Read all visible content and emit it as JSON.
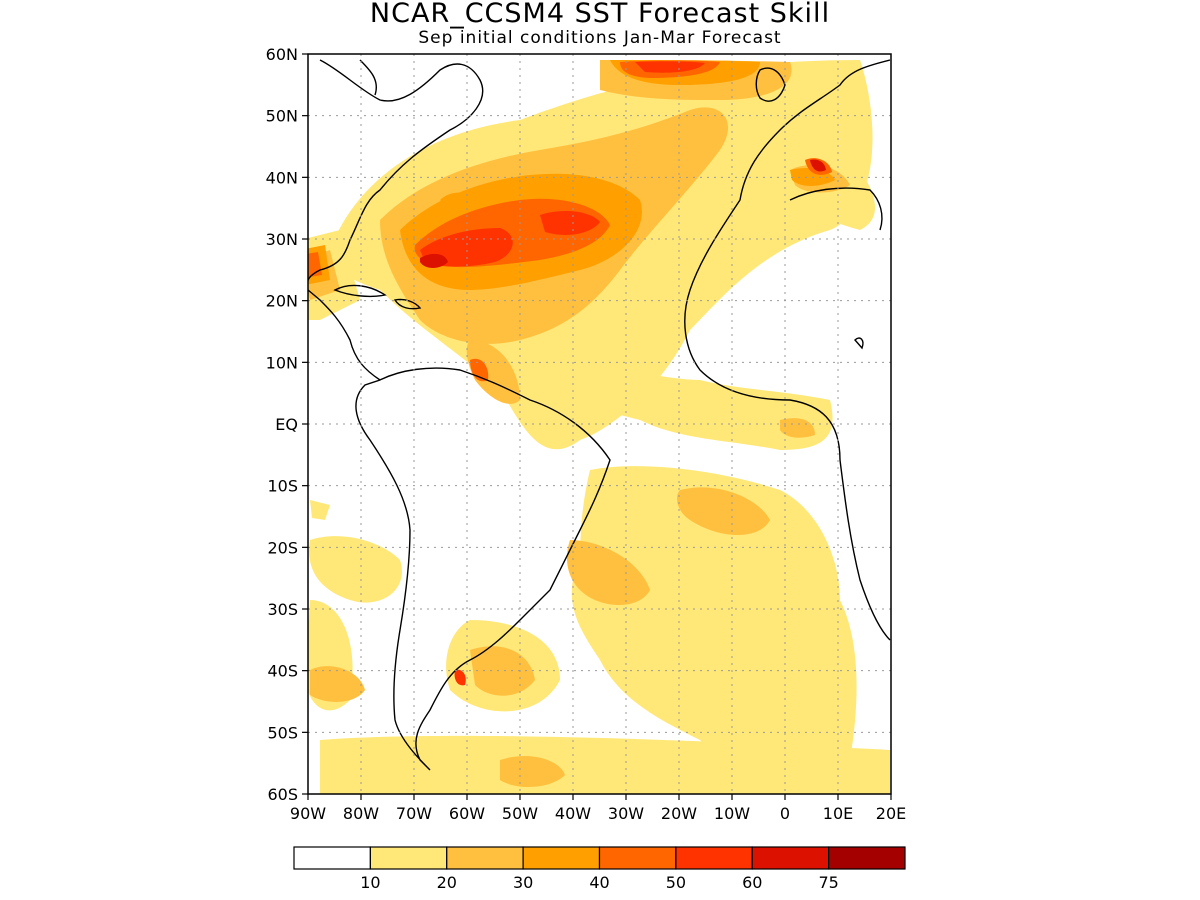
{
  "title": "NCAR_CCSM4 SST Forecast Skill",
  "subtitle": "Sep initial conditions  Jan-Mar Forecast",
  "map": {
    "lat_labels": [
      "60N",
      "50N",
      "40N",
      "30N",
      "20N",
      "10N",
      "EQ",
      "10S",
      "20S",
      "30S",
      "40S",
      "50S",
      "60S"
    ],
    "lon_labels": [
      "90W",
      "80W",
      "70W",
      "60W",
      "50W",
      "40W",
      "30W",
      "20W",
      "10W",
      "0",
      "10E",
      "20E"
    ],
    "lon_range": [
      -90,
      20
    ],
    "lat_range": [
      -60,
      60
    ],
    "grid": "dotted"
  },
  "colorbar": {
    "labels": [
      "10",
      "20",
      "30",
      "40",
      "50",
      "60",
      "75"
    ],
    "colors": [
      "#ffffff",
      "#ffe878",
      "#ffc040",
      "#ffa000",
      "#ff6600",
      "#ff3300",
      "#dd1100",
      "#a50000"
    ]
  }
}
